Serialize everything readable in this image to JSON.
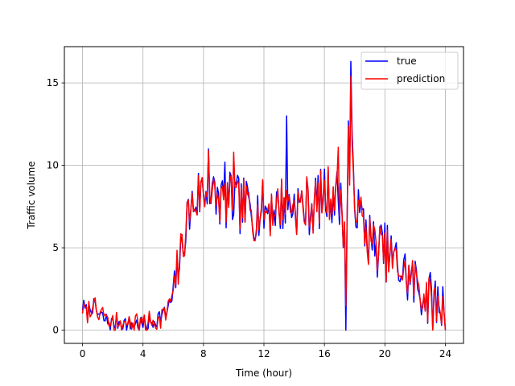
{
  "chart_data": {
    "type": "line",
    "title": "",
    "xlabel": "Time (hour)",
    "ylabel": "Traffic volume",
    "xlim": [
      -1.2,
      25.2
    ],
    "ylim": [
      -0.8,
      17.2
    ],
    "xticks": [
      0,
      4,
      8,
      12,
      16,
      20,
      24
    ],
    "yticks": [
      0,
      5,
      10,
      15
    ],
    "grid": true,
    "legend_position": "top-right",
    "series": [
      {
        "name": "true",
        "color": "#0000ff",
        "anchors": [
          [
            0,
            1.5
          ],
          [
            0.3,
            1.0
          ],
          [
            0.6,
            1.6
          ],
          [
            1,
            1.0
          ],
          [
            1.5,
            0.6
          ],
          [
            2,
            0.4
          ],
          [
            2.5,
            0.6
          ],
          [
            3,
            0.3
          ],
          [
            3.5,
            0.4
          ],
          [
            4,
            0.3
          ],
          [
            4.5,
            0.4
          ],
          [
            5,
            0.8
          ],
          [
            5.5,
            1.0
          ],
          [
            6,
            2.0
          ],
          [
            6.3,
            3.8
          ],
          [
            6.6,
            5.0
          ],
          [
            7,
            7.0
          ],
          [
            7.5,
            8.0
          ],
          [
            8,
            8.5
          ],
          [
            8.5,
            8.0
          ],
          [
            9,
            8.0
          ],
          [
            9.5,
            7.8
          ],
          [
            10,
            7.8
          ],
          [
            10.5,
            7.5
          ],
          [
            11,
            7.5
          ],
          [
            11.5,
            7.2
          ],
          [
            12,
            7.3
          ],
          [
            12.5,
            7.5
          ],
          [
            13,
            7.5
          ],
          [
            13.5,
            7.8
          ],
          [
            14,
            7.6
          ],
          [
            14.5,
            7.5
          ],
          [
            15,
            7.5
          ],
          [
            15.5,
            7.8
          ],
          [
            16,
            8.2
          ],
          [
            16.5,
            8.2
          ],
          [
            17,
            8.0
          ],
          [
            17.4,
            6.0
          ],
          [
            17.8,
            10.5
          ],
          [
            18.2,
            7.0
          ],
          [
            18.6,
            6.5
          ],
          [
            19,
            5.5
          ],
          [
            19.5,
            5.0
          ],
          [
            20,
            4.8
          ],
          [
            20.5,
            4.3
          ],
          [
            21,
            3.8
          ],
          [
            21.5,
            3.2
          ],
          [
            22,
            2.8
          ],
          [
            22.5,
            2.3
          ],
          [
            23,
            1.8
          ],
          [
            23.5,
            1.6
          ],
          [
            24,
            1.5
          ]
        ],
        "variation": 1.8,
        "spikes": [
          [
            13.5,
            13.0
          ],
          [
            17.75,
            16.3
          ],
          [
            17.6,
            12.7
          ],
          [
            17.4,
            0.0
          ],
          [
            9.4,
            10.2
          ],
          [
            8.3,
            11.0
          ],
          [
            19.3,
            4.5
          ]
        ]
      },
      {
        "name": "prediction",
        "color": "#ff0000",
        "anchors": [
          [
            0,
            1.5
          ],
          [
            0.3,
            1.0
          ],
          [
            0.6,
            1.6
          ],
          [
            1,
            1.0
          ],
          [
            1.5,
            0.6
          ],
          [
            2,
            0.4
          ],
          [
            2.5,
            0.6
          ],
          [
            3,
            0.3
          ],
          [
            3.5,
            0.4
          ],
          [
            4,
            0.3
          ],
          [
            4.5,
            0.4
          ],
          [
            5,
            0.8
          ],
          [
            5.5,
            1.0
          ],
          [
            6,
            2.0
          ],
          [
            6.3,
            3.8
          ],
          [
            6.6,
            5.0
          ],
          [
            7,
            7.0
          ],
          [
            7.5,
            8.0
          ],
          [
            8,
            8.5
          ],
          [
            8.5,
            8.0
          ],
          [
            9,
            8.0
          ],
          [
            9.5,
            7.8
          ],
          [
            10,
            7.8
          ],
          [
            10.5,
            7.5
          ],
          [
            11,
            7.5
          ],
          [
            11.5,
            7.2
          ],
          [
            12,
            7.3
          ],
          [
            12.5,
            7.5
          ],
          [
            13,
            7.5
          ],
          [
            13.5,
            7.8
          ],
          [
            14,
            7.6
          ],
          [
            14.5,
            7.5
          ],
          [
            15,
            7.5
          ],
          [
            15.5,
            7.8
          ],
          [
            16,
            8.2
          ],
          [
            16.5,
            8.2
          ],
          [
            17,
            8.0
          ],
          [
            17.4,
            6.0
          ],
          [
            17.8,
            10.5
          ],
          [
            18.2,
            7.0
          ],
          [
            18.6,
            6.5
          ],
          [
            19,
            5.5
          ],
          [
            19.5,
            5.0
          ],
          [
            20,
            4.8
          ],
          [
            20.5,
            4.3
          ],
          [
            21,
            3.8
          ],
          [
            21.5,
            3.2
          ],
          [
            22,
            2.8
          ],
          [
            22.5,
            2.3
          ],
          [
            23,
            1.8
          ],
          [
            23.5,
            1.6
          ],
          [
            24,
            1.5
          ]
        ],
        "variation": 1.5,
        "spikes": [
          [
            17.75,
            15.4
          ],
          [
            17.55,
            12.4
          ],
          [
            17.4,
            1.5
          ],
          [
            8.3,
            10.9
          ],
          [
            10.0,
            10.8
          ],
          [
            16.9,
            11.1
          ]
        ]
      }
    ]
  }
}
